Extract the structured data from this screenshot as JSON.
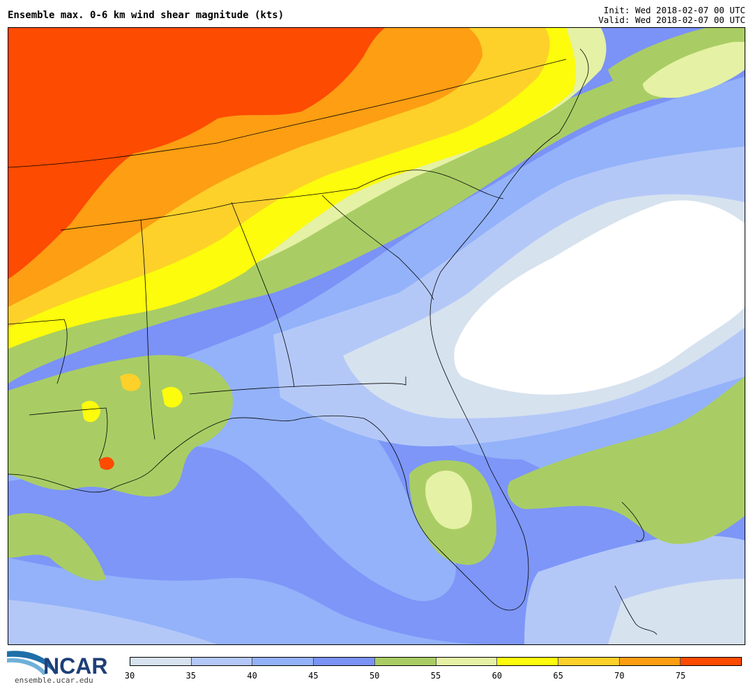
{
  "header": {
    "title": "Ensemble max. 0-6 km wind shear magnitude (kts)",
    "init": "Init: Wed 2018-02-07 00 UTC",
    "valid": "Valid: Wed 2018-02-07 00 UTC"
  },
  "logo": {
    "brand": "NCAR",
    "url": "ensemble.ucar.edu"
  },
  "colorbar": {
    "units": "kts",
    "bins": [
      {
        "min": 30,
        "max": 35,
        "color": "#d6e2ee"
      },
      {
        "min": 35,
        "max": 40,
        "color": "#b4c8f8"
      },
      {
        "min": 40,
        "max": 45,
        "color": "#93b2fa"
      },
      {
        "min": 45,
        "max": 50,
        "color": "#7b92f7"
      },
      {
        "min": 50,
        "max": 55,
        "color": "#a9cd64"
      },
      {
        "min": 55,
        "max": 60,
        "color": "#e5f1a4"
      },
      {
        "min": 60,
        "max": 65,
        "color": "#fdfc0c"
      },
      {
        "min": 65,
        "max": 70,
        "color": "#fdd12a"
      },
      {
        "min": 70,
        "max": 75,
        "color": "#fd9e13"
      },
      {
        "min": 75,
        "max": 80,
        "color": "#fd4b01"
      }
    ],
    "tick_labels": [
      "30",
      "35",
      "40",
      "45",
      "50",
      "55",
      "60",
      "65",
      "70",
      "75"
    ]
  },
  "map": {
    "region": "Southeastern United States",
    "variable": "0-6 km wind shear magnitude",
    "background_color": "#ffffff"
  }
}
